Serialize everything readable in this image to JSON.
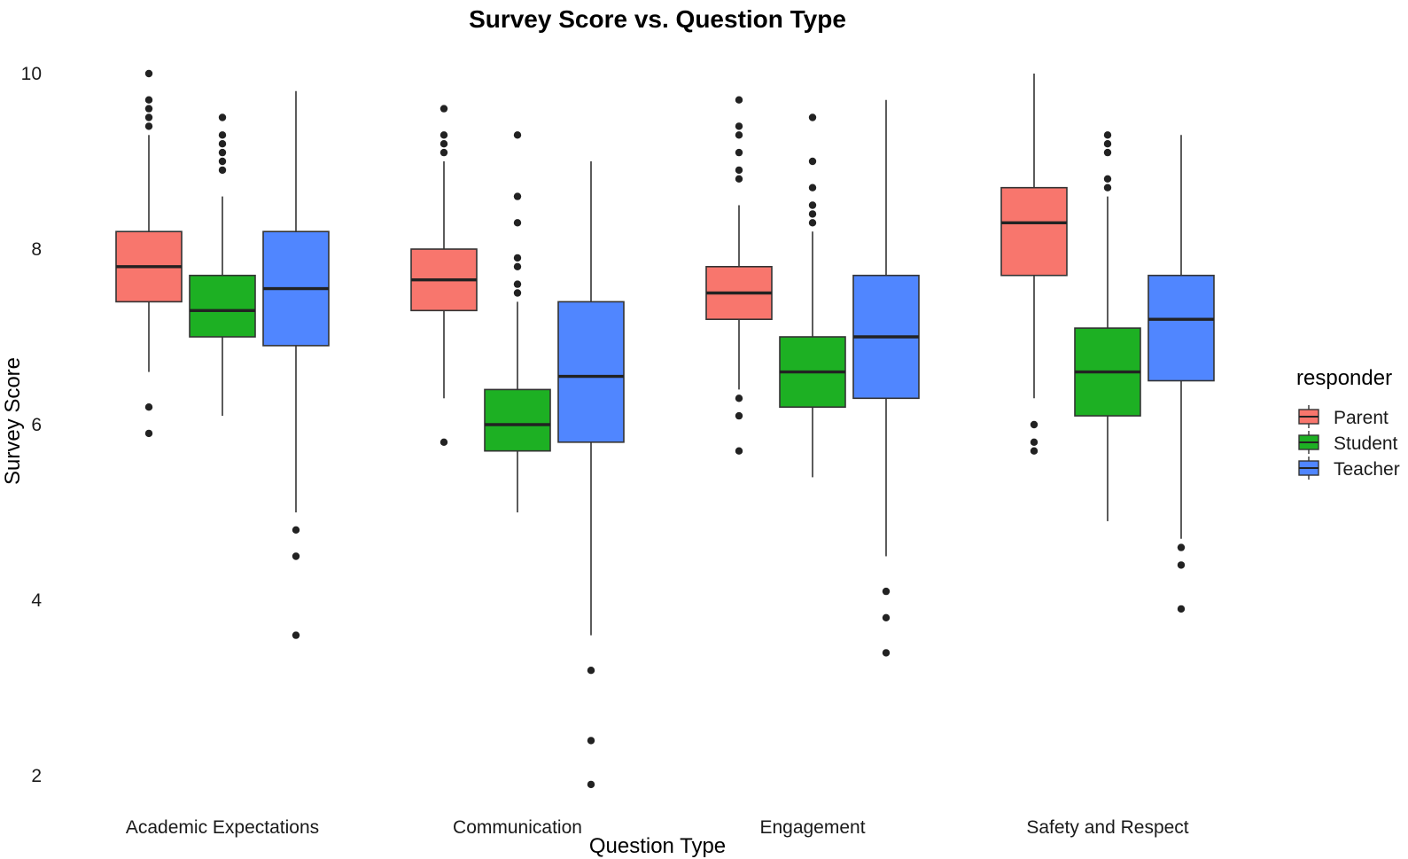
{
  "chart_data": {
    "type": "box",
    "title": "Survey Score vs. Question Type",
    "xlabel": "Question Type",
    "ylabel": "Survey Score",
    "ylim": [
      1.7,
      10.2
    ],
    "yticks": [
      2,
      4,
      6,
      8,
      10
    ],
    "grid": false,
    "legend": {
      "title": "responder",
      "placement": "right"
    },
    "categories": [
      "Academic Expectations",
      "Communication",
      "Engagement",
      "Safety and Respect"
    ],
    "series": [
      {
        "name": "Parent",
        "color": "#F8766D",
        "boxes": [
          {
            "whisker_low": 6.6,
            "q1": 7.4,
            "median": 7.8,
            "q3": 8.2,
            "whisker_high": 9.3,
            "outliers": [
              5.9,
              6.2,
              9.4,
              9.5,
              9.6,
              9.7,
              10.0
            ]
          },
          {
            "whisker_low": 6.3,
            "q1": 7.3,
            "median": 7.65,
            "q3": 8.0,
            "whisker_high": 9.0,
            "outliers": [
              5.8,
              9.1,
              9.2,
              9.3,
              9.6
            ]
          },
          {
            "whisker_low": 6.4,
            "q1": 7.2,
            "median": 7.5,
            "q3": 7.8,
            "whisker_high": 8.5,
            "outliers": [
              5.7,
              6.1,
              6.3,
              8.8,
              8.9,
              9.1,
              9.3,
              9.4,
              9.7
            ]
          },
          {
            "whisker_low": 6.3,
            "q1": 7.7,
            "median": 8.3,
            "q3": 8.7,
            "whisker_high": 10.0,
            "outliers": [
              5.7,
              5.8,
              6.0
            ]
          }
        ]
      },
      {
        "name": "Student",
        "color": "#1DB023",
        "boxes": [
          {
            "whisker_low": 6.1,
            "q1": 7.0,
            "median": 7.3,
            "q3": 7.7,
            "whisker_high": 8.6,
            "outliers": [
              8.9,
              9.0,
              9.1,
              9.2,
              9.3,
              9.5
            ]
          },
          {
            "whisker_low": 5.0,
            "q1": 5.7,
            "median": 6.0,
            "q3": 6.4,
            "whisker_high": 7.4,
            "outliers": [
              7.5,
              7.6,
              7.8,
              7.9,
              8.3,
              8.6,
              9.3
            ]
          },
          {
            "whisker_low": 5.4,
            "q1": 6.2,
            "median": 6.6,
            "q3": 7.0,
            "whisker_high": 8.2,
            "outliers": [
              8.3,
              8.4,
              8.5,
              8.7,
              9.0,
              9.5
            ]
          },
          {
            "whisker_low": 4.9,
            "q1": 6.1,
            "median": 6.6,
            "q3": 7.1,
            "whisker_high": 8.6,
            "outliers": [
              8.7,
              8.8,
              9.1,
              9.2,
              9.3
            ]
          }
        ]
      },
      {
        "name": "Teacher",
        "color": "#5086FF",
        "boxes": [
          {
            "whisker_low": 5.0,
            "q1": 6.9,
            "median": 7.55,
            "q3": 8.2,
            "whisker_high": 9.8,
            "outliers": [
              3.6,
              4.5,
              4.8
            ]
          },
          {
            "whisker_low": 3.6,
            "q1": 5.8,
            "median": 6.55,
            "q3": 7.4,
            "whisker_high": 9.0,
            "outliers": [
              1.9,
              2.4,
              3.2
            ]
          },
          {
            "whisker_low": 4.5,
            "q1": 6.3,
            "median": 7.0,
            "q3": 7.7,
            "whisker_high": 9.7,
            "outliers": [
              3.4,
              3.8,
              4.1
            ]
          },
          {
            "whisker_low": 4.7,
            "q1": 6.5,
            "median": 7.2,
            "q3": 7.7,
            "whisker_high": 9.3,
            "outliers": [
              3.9,
              4.4,
              4.6
            ]
          }
        ]
      }
    ]
  }
}
